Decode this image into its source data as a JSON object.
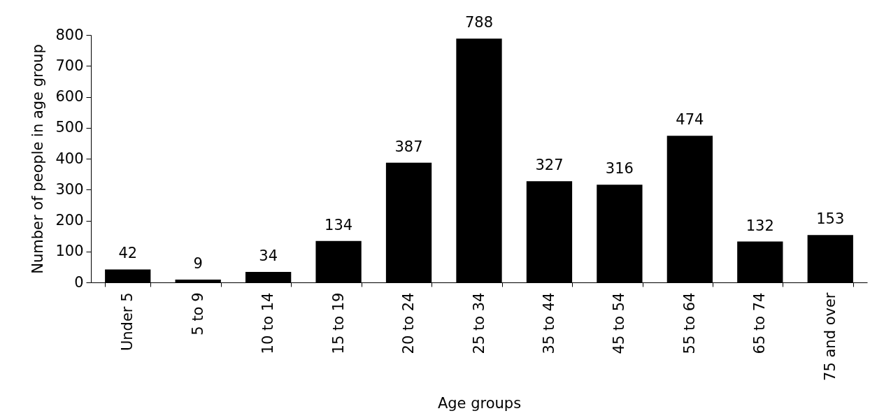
{
  "chart_data": {
    "type": "bar",
    "xlabel": "Age groups",
    "ylabel": "Number of people in age group",
    "categories": [
      "Under 5",
      "5 to 9",
      "10 to 14",
      "15 to 19",
      "20 to 24",
      "25 to 34",
      "35 to 44",
      "45 to 54",
      "55 to 64",
      "65 to 74",
      "75 and over"
    ],
    "values": [
      42,
      9,
      34,
      134,
      387,
      788,
      327,
      316,
      474,
      132,
      153
    ],
    "color": "#000000",
    "ylim": [
      0,
      800
    ],
    "yticks": [
      0,
      100,
      200,
      300,
      400,
      500,
      600,
      700,
      800
    ],
    "grid": false,
    "data_labels": true
  }
}
